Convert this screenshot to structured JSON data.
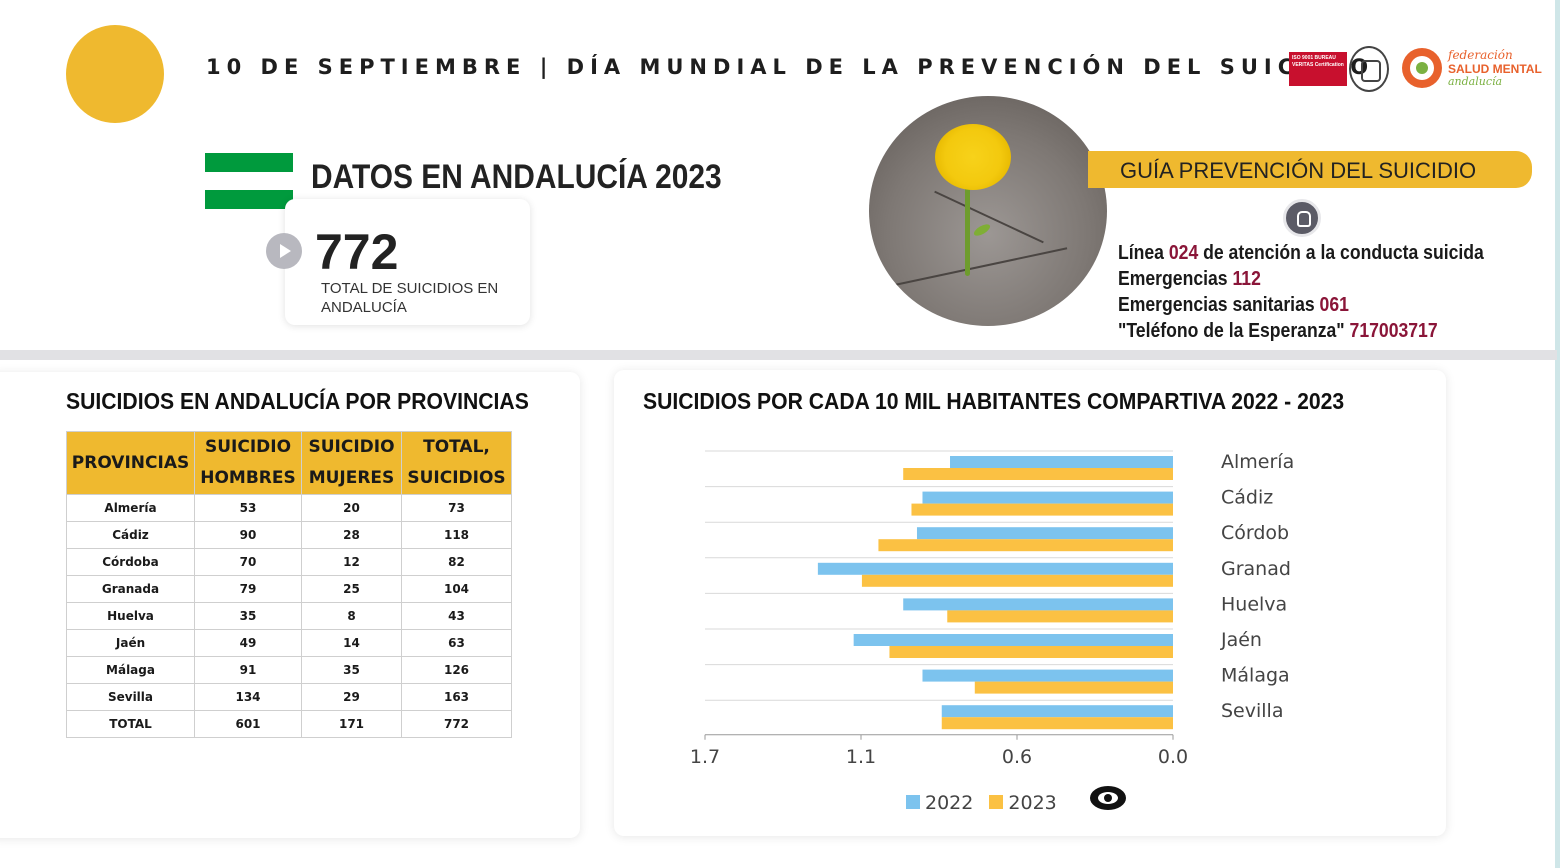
{
  "header": {
    "title": "10 DE SEPTIEMBRE | DÍA MUNDIAL DE LA PREVENCIÓN DEL SUICIDIO",
    "certification_logo": "bureau-veritas-iso-9001-logo",
    "certification_text": "ISO 9001 BUREAU VERITAS Certification",
    "org_logo": {
      "line1": "federación",
      "line2": "SALUD MENTAL",
      "line3": "andalucía"
    }
  },
  "summary": {
    "title": "DATOS EN ANDALUCÍA 2023",
    "total_value": "772",
    "total_label": "TOTAL DE SUICIDIOS EN ANDALUCÍA"
  },
  "guide": {
    "title": "GUÍA PREVENCIÓN DEL SUICIDIO",
    "contacts": [
      {
        "label_before": "Línea ",
        "number": "024",
        "label_after": " de atención a la conducta suicida"
      },
      {
        "label_before": "Emergencias ",
        "number": "112",
        "label_after": ""
      },
      {
        "label_before": "Emergencias sanitarias ",
        "number": "061",
        "label_after": ""
      },
      {
        "label_before": "\"Teléfono de la Esperanza\" ",
        "number": "717003717",
        "label_after": ""
      }
    ]
  },
  "table": {
    "title": "SUICIDIOS EN ANDALUCÍA POR PROVINCIAS",
    "headers": [
      [
        "PROVINCIAS"
      ],
      [
        "SUICIDIO",
        "HOMBRES"
      ],
      [
        "SUICIDIO",
        "MUJERES"
      ],
      [
        "TOTAL,",
        "SUICIDIOS"
      ]
    ],
    "rows": [
      [
        "Almería",
        "53",
        "20",
        "73"
      ],
      [
        "Cádiz",
        "90",
        "28",
        "118"
      ],
      [
        "Córdoba",
        "70",
        "12",
        "82"
      ],
      [
        "Granada",
        "79",
        "25",
        "104"
      ],
      [
        "Huelva",
        "35",
        "8",
        "43"
      ],
      [
        "Jaén",
        "49",
        "14",
        "63"
      ],
      [
        "Málaga",
        "91",
        "35",
        "126"
      ],
      [
        "Sevilla",
        "134",
        "29",
        "163"
      ],
      [
        "TOTAL",
        "601",
        "171",
        "772"
      ]
    ]
  },
  "chart_data": {
    "type": "bar",
    "orientation": "horizontal",
    "title": "SUICIDIOS POR CADA 10 MIL HABITANTES COMPARTIVA 2022 - 2023",
    "categories": [
      "Almería",
      "Cádiz",
      "Córdob",
      "Granad",
      "Huelva",
      "Jaén",
      "Málaga",
      "Sevilla"
    ],
    "series": [
      {
        "name": "2022",
        "color": "#7cc3ee",
        "values": [
          0.81,
          0.91,
          0.93,
          1.29,
          0.98,
          1.16,
          0.91,
          0.84
        ]
      },
      {
        "name": "2023",
        "color": "#fbc143",
        "values": [
          0.98,
          0.95,
          1.07,
          1.13,
          0.82,
          1.03,
          0.72,
          0.84
        ]
      }
    ],
    "x_ticks": [
      "1.7",
      "1.1",
      "0.6",
      "0.0"
    ],
    "xlim": [
      1.7,
      0.0
    ],
    "legend_position": "bottom",
    "grid": true
  },
  "icons": {
    "play": "play-icon",
    "touch": "hand-pointer-icon",
    "eye": "eye-icon"
  },
  "colors": {
    "accent_yellow": "#efb92f",
    "flag_green": "#009a3d",
    "number_red": "#8a1538",
    "series_2022": "#7cc3ee",
    "series_2023": "#fbc143"
  }
}
